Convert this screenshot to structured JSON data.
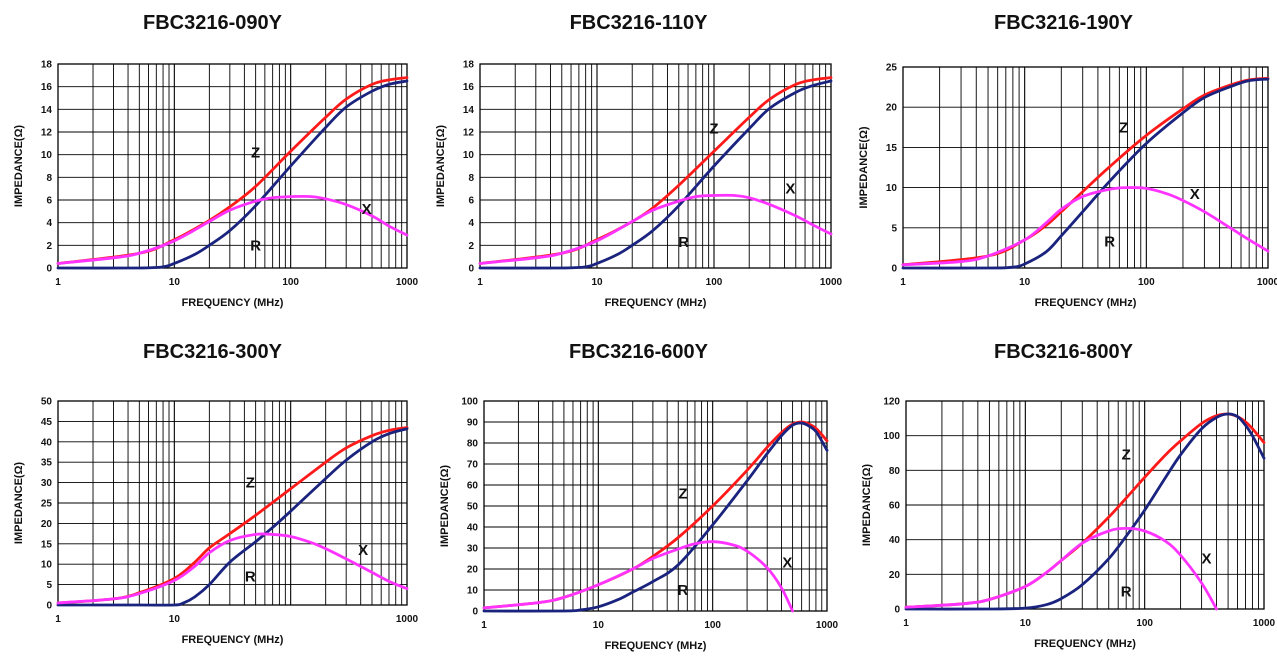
{
  "colors": {
    "Z": "#ff1a1a",
    "R": "#1a237e",
    "X": "#ff33ff",
    "grid": "#000000"
  },
  "chart_data": [
    {
      "type": "line",
      "title": "FBC3216-090Y",
      "xlabel": "FREQUENCY (MHz)",
      "ylabel": "IMPEDANCE(Ω)",
      "xscale": "log",
      "xlim": [
        1,
        1000
      ],
      "ylim": [
        0,
        18
      ],
      "xticks": [
        "1",
        "10",
        "100",
        "1000"
      ],
      "yticks": [
        0,
        2,
        4,
        6,
        8,
        10,
        12,
        14,
        16,
        18
      ],
      "series": [
        {
          "name": "Z",
          "x": [
            1,
            5,
            10,
            20,
            30,
            50,
            100,
            200,
            300,
            500,
            700,
            1000
          ],
          "y": [
            0.4,
            1.3,
            2.5,
            4.2,
            5.4,
            7.2,
            10.3,
            13.3,
            14.9,
            16.2,
            16.6,
            16.8
          ]
        },
        {
          "name": "R",
          "x": [
            1,
            5,
            8,
            10,
            15,
            20,
            30,
            50,
            100,
            200,
            300,
            500,
            700,
            1000
          ],
          "y": [
            0,
            0,
            0.1,
            0.4,
            1.2,
            2.0,
            3.3,
            5.5,
            9.0,
            12.4,
            14.2,
            15.6,
            16.2,
            16.5
          ]
        },
        {
          "name": "X",
          "x": [
            1,
            3,
            5,
            10,
            20,
            30,
            50,
            70,
            100,
            150,
            200,
            300,
            500,
            700,
            1000
          ],
          "y": [
            0.4,
            0.9,
            1.3,
            2.4,
            4.1,
            5.1,
            5.9,
            6.2,
            6.3,
            6.3,
            6.1,
            5.6,
            4.6,
            3.7,
            2.9
          ]
        }
      ],
      "labels": [
        {
          "text": "Z",
          "x": 50,
          "y": 10.2
        },
        {
          "text": "X",
          "x": 450,
          "y": 5.2
        },
        {
          "text": "R",
          "x": 50,
          "y": 2.0
        }
      ]
    },
    {
      "type": "line",
      "title": "FBC3216-110Y",
      "xlabel": "FREQUENCY (MHz)",
      "ylabel": "IMPEDANCE(Ω)",
      "xscale": "log",
      "xlim": [
        1,
        1000
      ],
      "ylim": [
        0,
        18
      ],
      "xticks": [
        "1",
        "10",
        "100",
        "1000"
      ],
      "yticks": [
        0,
        2,
        4,
        6,
        8,
        10,
        12,
        14,
        16,
        18
      ],
      "series": [
        {
          "name": "Z",
          "x": [
            1,
            5,
            10,
            20,
            30,
            50,
            100,
            200,
            300,
            500,
            700,
            1000
          ],
          "y": [
            0.4,
            1.3,
            2.5,
            4.1,
            5.3,
            7.3,
            10.3,
            13.3,
            14.9,
            16.2,
            16.6,
            16.8
          ]
        },
        {
          "name": "R",
          "x": [
            1,
            5,
            8,
            10,
            15,
            20,
            30,
            50,
            100,
            200,
            300,
            500,
            700,
            1000
          ],
          "y": [
            0,
            0,
            0.1,
            0.4,
            1.2,
            2.0,
            3.3,
            5.5,
            9.0,
            12.3,
            14.1,
            15.5,
            16.1,
            16.5
          ]
        },
        {
          "name": "X",
          "x": [
            1,
            3,
            5,
            10,
            20,
            30,
            50,
            70,
            100,
            150,
            200,
            300,
            500,
            700,
            1000
          ],
          "y": [
            0.4,
            0.9,
            1.3,
            2.4,
            4.1,
            5.1,
            5.9,
            6.3,
            6.4,
            6.4,
            6.2,
            5.6,
            4.6,
            3.8,
            3.0
          ]
        }
      ],
      "labels": [
        {
          "text": "Z",
          "x": 100,
          "y": 12.3
        },
        {
          "text": "X",
          "x": 450,
          "y": 7.0
        },
        {
          "text": "R",
          "x": 55,
          "y": 2.3
        }
      ]
    },
    {
      "type": "line",
      "title": "FBC3216-190Y",
      "xlabel": "FREQUENCY (MHz)",
      "ylabel": "IMPEDANCE(Ω)",
      "xscale": "log",
      "xlim": [
        1,
        1000
      ],
      "ylim": [
        0,
        25
      ],
      "xticks": [
        "1",
        "10",
        "100",
        "1000"
      ],
      "yticks": [
        0,
        5,
        10,
        15,
        20,
        25
      ],
      "series": [
        {
          "name": "Z",
          "x": [
            1,
            5,
            10,
            15,
            20,
            30,
            50,
            100,
            200,
            300,
            500,
            700,
            1000
          ],
          "y": [
            0.4,
            1.5,
            3.5,
            5.3,
            7.0,
            9.5,
            12.6,
            16.5,
            19.8,
            21.5,
            22.8,
            23.4,
            23.6
          ]
        },
        {
          "name": "R",
          "x": [
            1,
            5,
            8,
            10,
            15,
            20,
            30,
            50,
            100,
            200,
            300,
            500,
            700,
            1000
          ],
          "y": [
            0,
            0,
            0.1,
            0.5,
            2.0,
            4.0,
            7.0,
            10.8,
            15.5,
            19.3,
            21.2,
            22.6,
            23.3,
            23.5
          ]
        },
        {
          "name": "X",
          "x": [
            1,
            3,
            5,
            10,
            15,
            20,
            30,
            50,
            70,
            100,
            150,
            200,
            300,
            500,
            700,
            1000
          ],
          "y": [
            0.4,
            0.8,
            1.5,
            3.5,
            5.6,
            7.3,
            8.9,
            9.8,
            10.0,
            9.9,
            9.2,
            8.4,
            7.0,
            4.9,
            3.5,
            2.1
          ]
        }
      ],
      "labels": [
        {
          "text": "Z",
          "x": 65,
          "y": 17.5
        },
        {
          "text": "X",
          "x": 250,
          "y": 9.2
        },
        {
          "text": "R",
          "x": 50,
          "y": 3.3
        }
      ]
    },
    {
      "type": "line",
      "title": "FBC3216-300Y",
      "xlabel": "FREQUENCY (MHz)",
      "ylabel": "IMPEDANCE(Ω)",
      "xscale": "log",
      "xlim": [
        1,
        1000
      ],
      "ylim": [
        0,
        50
      ],
      "xticks": [
        "1",
        "10",
        "1000"
      ],
      "yticks": [
        0,
        5,
        10,
        15,
        20,
        25,
        30,
        35,
        40,
        45,
        50
      ],
      "series": [
        {
          "name": "Z",
          "x": [
            1,
            3,
            5,
            10,
            15,
            20,
            30,
            50,
            100,
            200,
            300,
            500,
            700,
            1000
          ],
          "y": [
            0.5,
            1.5,
            3.0,
            6.5,
            10.5,
            14.0,
            17.5,
            22.0,
            28.5,
            35.0,
            38.5,
            41.5,
            42.8,
            43.5
          ]
        },
        {
          "name": "R",
          "x": [
            1,
            5,
            10,
            12,
            15,
            20,
            30,
            50,
            70,
            100,
            200,
            300,
            500,
            700,
            1000
          ],
          "y": [
            0,
            0,
            0,
            0.5,
            2.0,
            5.0,
            10.5,
            15.5,
            19.0,
            23.0,
            31.0,
            35.5,
            40.0,
            42.0,
            43.2
          ]
        },
        {
          "name": "X",
          "x": [
            1,
            3,
            5,
            10,
            15,
            20,
            30,
            50,
            70,
            100,
            150,
            200,
            300,
            500,
            700,
            1000
          ],
          "y": [
            0.5,
            1.5,
            2.8,
            6.0,
            9.5,
            12.8,
            15.8,
            17.3,
            17.3,
            16.8,
            15.3,
            13.8,
            11.3,
            8.0,
            5.8,
            4.0
          ]
        }
      ],
      "labels": [
        {
          "text": "Z",
          "x": 45,
          "y": 30.0
        },
        {
          "text": "X",
          "x": 420,
          "y": 13.5
        },
        {
          "text": "R",
          "x": 45,
          "y": 7.0
        }
      ]
    },
    {
      "type": "line",
      "title": "FBC3216-600Y",
      "xlabel": "FREQUENCY (MHz)",
      "ylabel": "IMPEDANCE(Ω)",
      "xscale": "log",
      "xlim": [
        1,
        1000
      ],
      "ylim": [
        0,
        100
      ],
      "xticks": [
        "1",
        "10",
        "100",
        "1000"
      ],
      "yticks": [
        0,
        10,
        20,
        30,
        40,
        50,
        60,
        70,
        80,
        90,
        100
      ],
      "series": [
        {
          "name": "Z",
          "x": [
            1,
            3,
            5,
            10,
            20,
            30,
            50,
            100,
            200,
            300,
            400,
            500,
            600,
            700,
            800,
            900,
            1000
          ],
          "y": [
            1.5,
            4.0,
            6.5,
            12.5,
            20.0,
            26.0,
            35.0,
            50.0,
            67.0,
            78.0,
            85.0,
            89.0,
            90.0,
            89.0,
            87.0,
            84.0,
            81.0
          ]
        },
        {
          "name": "R",
          "x": [
            1,
            5,
            7,
            10,
            15,
            20,
            30,
            50,
            100,
            200,
            300,
            400,
            500,
            600,
            700,
            800,
            900,
            1000
          ],
          "y": [
            0,
            0,
            0.5,
            2.0,
            5.5,
            9.0,
            14.0,
            22.0,
            41.0,
            62.0,
            75.0,
            83.5,
            88.5,
            89.5,
            88.0,
            85.5,
            81.0,
            76.5
          ]
        },
        {
          "name": "X",
          "x": [
            1,
            3,
            5,
            10,
            20,
            30,
            50,
            70,
            100,
            150,
            200,
            300,
            400,
            500
          ],
          "y": [
            1.5,
            4.0,
            6.5,
            12.5,
            20.0,
            25.0,
            29.5,
            32.0,
            33.0,
            31.5,
            28.5,
            20.5,
            11.0,
            0.0
          ]
        }
      ],
      "labels": [
        {
          "text": "Z",
          "x": 55,
          "y": 56.0
        },
        {
          "text": "X",
          "x": 450,
          "y": 23.0
        },
        {
          "text": "R",
          "x": 55,
          "y": 10.0
        }
      ]
    },
    {
      "type": "line",
      "title": "FBC3216-800Y",
      "xlabel": "FREQUENCY (MHz)",
      "ylabel": "IMPEDANCE(Ω)",
      "xscale": "log",
      "xlim": [
        1,
        1000
      ],
      "ylim": [
        0,
        120
      ],
      "xticks": [
        "1",
        "10",
        "100",
        "1000"
      ],
      "yticks": [
        0,
        20,
        40,
        60,
        80,
        100,
        120
      ],
      "series": [
        {
          "name": "Z",
          "x": [
            1,
            3,
            5,
            10,
            15,
            20,
            30,
            50,
            70,
            100,
            150,
            200,
            300,
            400,
            500,
            600,
            700,
            800,
            1000
          ],
          "y": [
            1.0,
            3.0,
            5.5,
            13.0,
            21.0,
            28.0,
            38.0,
            53.0,
            64.0,
            76.0,
            89.0,
            97.0,
            107.0,
            111.5,
            112.5,
            111.0,
            108.0,
            104.0,
            96.0
          ]
        },
        {
          "name": "R",
          "x": [
            1,
            5,
            10,
            15,
            20,
            30,
            50,
            70,
            100,
            150,
            200,
            300,
            400,
            500,
            600,
            700,
            800,
            1000
          ],
          "y": [
            0,
            0,
            0.5,
            2.5,
            6.0,
            14.0,
            29.0,
            42.0,
            57.0,
            76.0,
            89.0,
            104.0,
            110.5,
            112.5,
            111.0,
            106.0,
            100.0,
            87.0
          ]
        },
        {
          "name": "X",
          "x": [
            1,
            3,
            5,
            10,
            15,
            20,
            30,
            50,
            70,
            100,
            150,
            200,
            300,
            400
          ],
          "y": [
            1.0,
            3.0,
            5.5,
            13.0,
            21.0,
            28.0,
            38.0,
            45.0,
            46.5,
            45.0,
            39.0,
            31.0,
            15.0,
            0.0
          ]
        }
      ],
      "labels": [
        {
          "text": "Z",
          "x": 70,
          "y": 89.0
        },
        {
          "text": "X",
          "x": 330,
          "y": 29.0
        },
        {
          "text": "R",
          "x": 70,
          "y": 10.0
        }
      ]
    }
  ]
}
